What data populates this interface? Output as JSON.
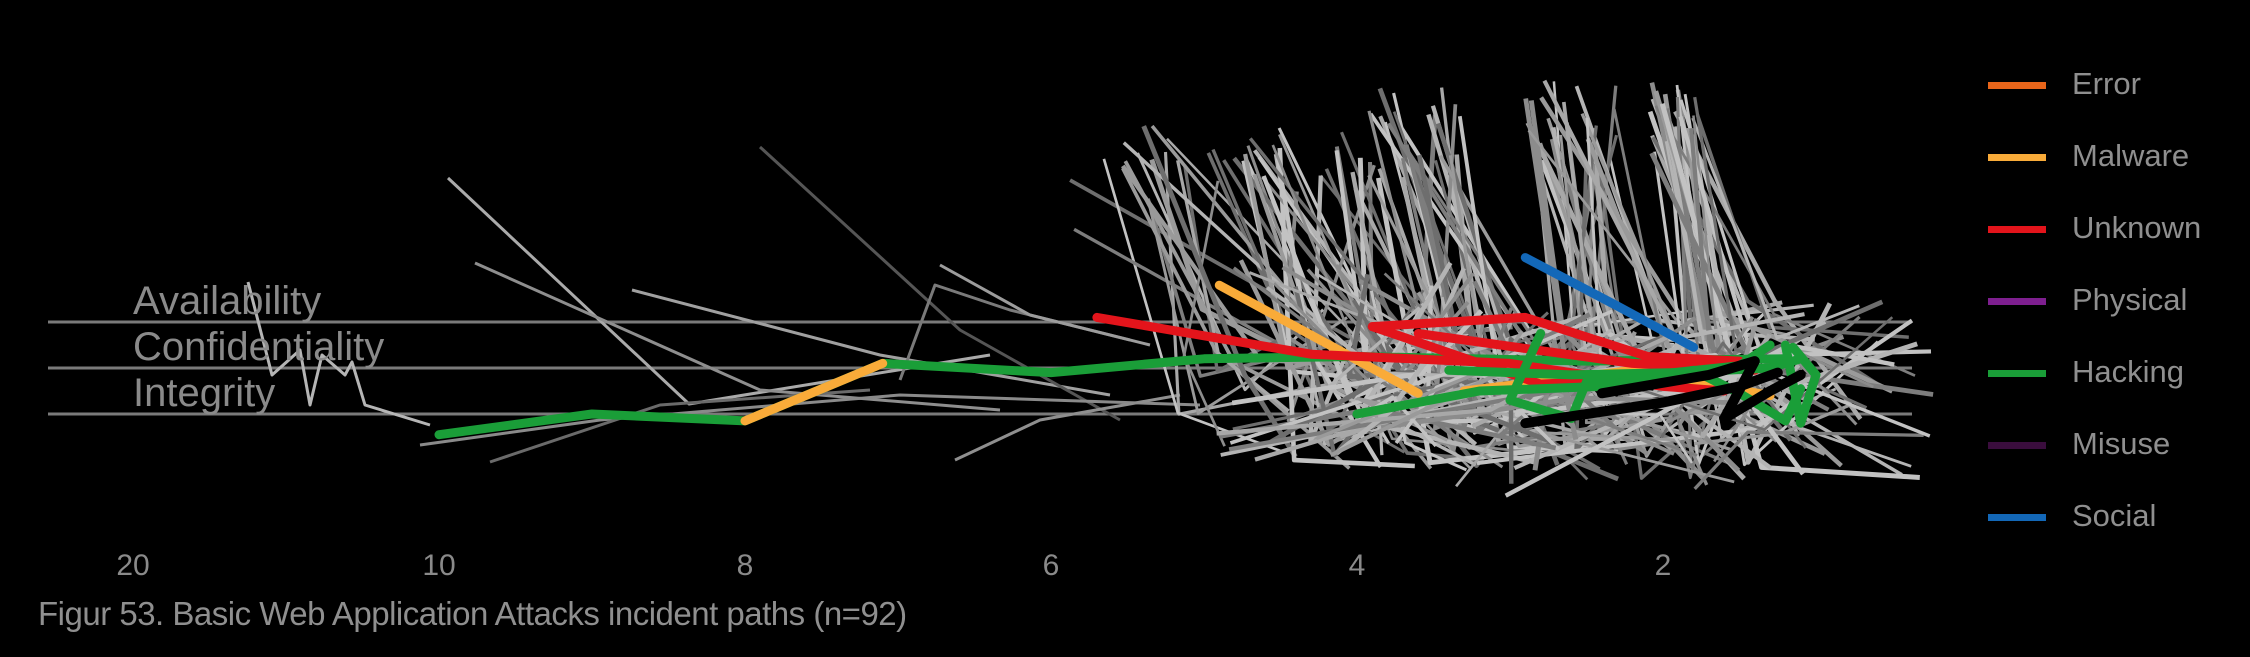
{
  "caption": "Figur 53. Basic Web Application Attacks incident paths (n=92)",
  "chart_data": {
    "type": "line",
    "title": "",
    "xlabel": "",
    "ylabel": "",
    "x_scale": "reversed, compressed above 10",
    "x_ticks": [
      20,
      10,
      8,
      6,
      4,
      2
    ],
    "y_categories": [
      "Availability",
      "Confidentiality",
      "Integrity"
    ],
    "legend": {
      "placement": "right",
      "entries": [
        {
          "name": "Error",
          "color": "#e8651a"
        },
        {
          "name": "Malware",
          "color": "#f9ab39"
        },
        {
          "name": "Unknown",
          "color": "#e3141b"
        },
        {
          "name": "Physical",
          "color": "#7e1f8f"
        },
        {
          "name": "Hacking",
          "color": "#1a9e38"
        },
        {
          "name": "Misuse",
          "color": "#3a0d3d"
        },
        {
          "name": "Social",
          "color": "#1368b8"
        }
      ]
    },
    "background_paths": {
      "color": "gray",
      "count_hint": 92,
      "note_shown": ""
    },
    "highlighted_paths": [
      {
        "action": "Hacking",
        "points": [
          [
            10,
            2.9
          ],
          [
            9,
            2.0
          ],
          [
            8,
            2.3
          ],
          [
            7.1,
            -0.2
          ],
          [
            6,
            0.2
          ],
          [
            5,
            -0.4
          ],
          [
            4,
            -0.5
          ],
          [
            2.5,
            -0.3
          ],
          [
            1.2,
            -0.4
          ]
        ]
      },
      {
        "action": "Malware",
        "points": [
          [
            8,
            2.3
          ],
          [
            7.1,
            -0.2
          ]
        ]
      },
      {
        "action": "Malware",
        "points": [
          [
            4.9,
            -3.6
          ],
          [
            3.6,
            1.1
          ]
        ]
      },
      {
        "action": "Malware",
        "points": [
          [
            3.3,
            1.0
          ],
          [
            2.2,
            0.1
          ],
          [
            1.3,
            1.2
          ]
        ]
      },
      {
        "action": "Unknown",
        "points": [
          [
            5.7,
            -2.2
          ],
          [
            4.3,
            -0.6
          ],
          [
            3.0,
            -0.2
          ],
          [
            2.0,
            0.8
          ],
          [
            1.6,
            1.0
          ]
        ]
      },
      {
        "action": "Unknown",
        "points": [
          [
            3.9,
            -1.8
          ],
          [
            2.9,
            -2.2
          ],
          [
            2.1,
            -0.5
          ],
          [
            1.5,
            -0.3
          ]
        ]
      },
      {
        "action": "Unknown",
        "points": [
          [
            3.9,
            -1.8
          ],
          [
            2.8,
            0.7
          ],
          [
            2.5,
            0.6
          ]
        ]
      },
      {
        "action": "Unknown",
        "points": [
          [
            3.6,
            -1.5
          ],
          [
            2.2,
            -0.2
          ],
          [
            1.4,
            0.1
          ]
        ]
      },
      {
        "action": "Social",
        "points": [
          [
            2.9,
            -4.8
          ],
          [
            2.3,
            -2.7
          ],
          [
            1.8,
            -0.9
          ]
        ]
      },
      {
        "action": "Hacking",
        "points": [
          [
            2.8,
            -1.5
          ],
          [
            3.0,
            1.4
          ],
          [
            2.6,
            2.2
          ],
          [
            2.5,
            0.6
          ],
          [
            1.5,
            -0.1
          ],
          [
            1.3,
            -1.0
          ]
        ]
      },
      {
        "action": "Hacking",
        "points": [
          [
            4.0,
            2.0
          ],
          [
            3.2,
            1.0
          ],
          [
            2.4,
            0.8
          ],
          [
            1.8,
            0.1
          ],
          [
            1.5,
            1.1
          ],
          [
            1.2,
            2.3
          ],
          [
            1.1,
            0.9
          ]
        ]
      },
      {
        "action": "Hacking",
        "points": [
          [
            3.4,
            0.1
          ],
          [
            2.6,
            0.3
          ],
          [
            1.9,
            0.2
          ],
          [
            1.3,
            0.0
          ],
          [
            1.1,
            -0.4
          ]
        ]
      },
      {
        "action": "Hacking",
        "points": [
          [
            1.2,
            -1.0
          ],
          [
            1.1,
            2.4
          ],
          [
            1.0,
            0.3
          ],
          [
            1.15,
            -0.9
          ]
        ]
      },
      {
        "action": "Misuse",
        "points": [
          [
            2.4,
            1.1
          ],
          [
            1.7,
            0.3
          ],
          [
            1.4,
            -0.3
          ],
          [
            1.6,
            2.2
          ],
          [
            1.3,
            1.0
          ],
          [
            1.1,
            0.3
          ]
        ]
      },
      {
        "action": "Misuse",
        "points": [
          [
            2.9,
            2.4
          ],
          [
            2.0,
            1.5
          ],
          [
            1.5,
            0.8
          ],
          [
            1.25,
            0.2
          ]
        ]
      }
    ]
  }
}
